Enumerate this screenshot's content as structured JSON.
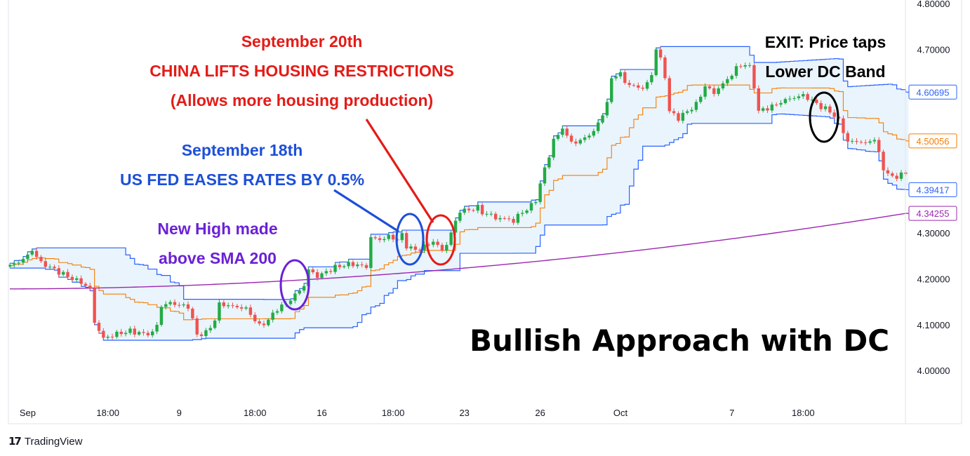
{
  "chart_data": {
    "type": "candlestick",
    "title": "Bullish Approach with DC",
    "y_axis": {
      "ticks": [
        "4.80000",
        "4.70000",
        "4.30000",
        "4.20000",
        "4.10000",
        "4.00000"
      ],
      "tick_values": [
        4.8,
        4.7,
        4.3,
        4.2,
        4.1,
        4.0
      ],
      "ylim": [
        3.93,
        4.81
      ],
      "position": "right"
    },
    "x_axis": {
      "labels": [
        "Sep",
        "18:00",
        "9",
        "18:00",
        "16",
        "18:00",
        "23",
        "26",
        "Oct",
        "7",
        "18:00"
      ],
      "label_bars": [
        4,
        22,
        38,
        55,
        70,
        86,
        102,
        119,
        137,
        162,
        178
      ]
    },
    "price_badges": [
      {
        "value": 4.60695,
        "label": "4.60695",
        "color": "#2962ff",
        "series": "upper"
      },
      {
        "value": 4.50056,
        "label": "4.50056",
        "color": "#f57c00",
        "series": "middle"
      },
      {
        "value": 4.39417,
        "label": "4.39417",
        "color": "#2962ff",
        "series": "lower"
      },
      {
        "value": 4.34255,
        "label": "4.34255",
        "color": "#9c27b0",
        "series": "sma"
      }
    ],
    "colors": {
      "up": "#26a69a",
      "up_body": "#22ab45",
      "down": "#ef5350",
      "dc_band": "#2962ff",
      "dc_fill": "#e3f0fb",
      "dc_mid": "#f57c00",
      "sma": "#9c27b0",
      "axis_text": "#131722"
    },
    "annotations": [
      {
        "id": "sep20",
        "lines": [
          "September 20th",
          "CHINA LIFTS HOUSING RESTRICTIONS",
          "(Allows more housing production)"
        ],
        "color": "#e41b17"
      },
      {
        "id": "sep18",
        "lines": [
          "September 18th",
          "US FED EASES RATES BY 0.5%"
        ],
        "color": "#1d4fd8"
      },
      {
        "id": "newhigh",
        "lines": [
          "New High made",
          "above SMA 200"
        ],
        "color": "#6b21d6"
      },
      {
        "id": "exit",
        "lines": [
          "EXIT: Price taps",
          "Lower DC Band"
        ],
        "color": "#000000"
      }
    ]
  },
  "footer": {
    "logo_glyph": "17",
    "brand": "TradingView"
  }
}
